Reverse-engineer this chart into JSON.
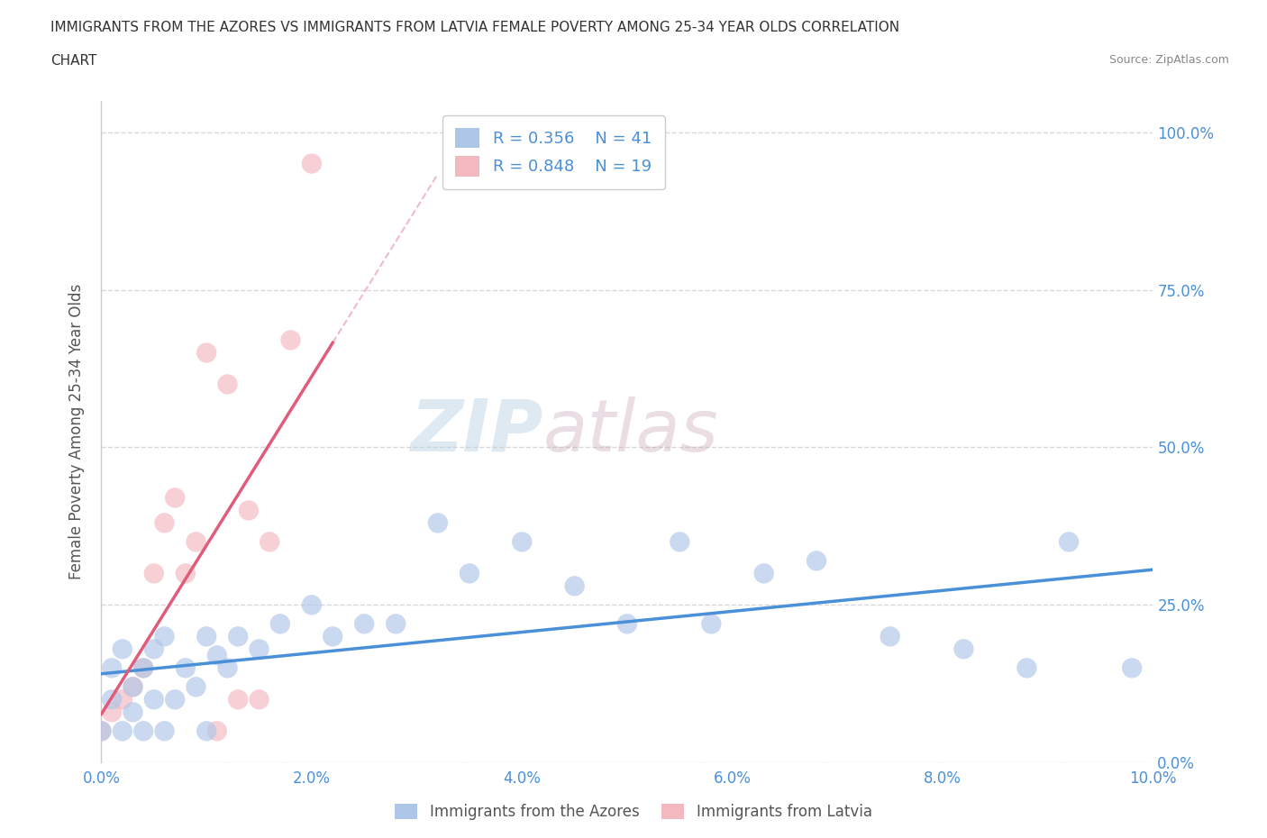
{
  "title_line1": "IMMIGRANTS FROM THE AZORES VS IMMIGRANTS FROM LATVIA FEMALE POVERTY AMONG 25-34 YEAR OLDS CORRELATION",
  "title_line2": "CHART",
  "source_text": "Source: ZipAtlas.com",
  "ylabel": "Female Poverty Among 25-34 Year Olds",
  "xlim": [
    0.0,
    0.1
  ],
  "ylim": [
    0.0,
    1.05
  ],
  "xtick_labels": [
    "0.0%",
    "2.0%",
    "4.0%",
    "6.0%",
    "8.0%",
    "10.0%"
  ],
  "xtick_vals": [
    0.0,
    0.02,
    0.04,
    0.06,
    0.08,
    0.1
  ],
  "ytick_labels": [
    "0.0%",
    "25.0%",
    "50.0%",
    "75.0%",
    "100.0%"
  ],
  "ytick_vals": [
    0.0,
    0.25,
    0.5,
    0.75,
    1.0
  ],
  "watermark_zip": "ZIP",
  "watermark_atlas": "atlas",
  "azores_color": "#aec6e8",
  "latvia_color": "#f4b8c1",
  "azores_line_color": "#4a90d9",
  "latvia_line_color": "#e05c7a",
  "latvia_dash_color": "#e8a0b0",
  "legend_azores_label": "Immigrants from the Azores",
  "legend_latvia_label": "Immigrants from Latvia",
  "R_azores": 0.356,
  "N_azores": 41,
  "R_latvia": 0.848,
  "N_latvia": 19,
  "azores_x": [
    0.0,
    0.001,
    0.001,
    0.002,
    0.002,
    0.003,
    0.003,
    0.004,
    0.004,
    0.005,
    0.005,
    0.006,
    0.006,
    0.007,
    0.008,
    0.009,
    0.01,
    0.011,
    0.012,
    0.013,
    0.015,
    0.017,
    0.02,
    0.022,
    0.025,
    0.028,
    0.032,
    0.035,
    0.04,
    0.045,
    0.05,
    0.055,
    0.058,
    0.063,
    0.068,
    0.075,
    0.082,
    0.088,
    0.092,
    0.098,
    0.01
  ],
  "azores_y": [
    0.05,
    0.1,
    0.15,
    0.05,
    0.18,
    0.08,
    0.12,
    0.05,
    0.15,
    0.1,
    0.18,
    0.05,
    0.2,
    0.1,
    0.15,
    0.12,
    0.2,
    0.17,
    0.15,
    0.2,
    0.18,
    0.22,
    0.25,
    0.2,
    0.22,
    0.22,
    0.38,
    0.3,
    0.35,
    0.28,
    0.22,
    0.35,
    0.22,
    0.3,
    0.32,
    0.2,
    0.18,
    0.15,
    0.35,
    0.15,
    0.05
  ],
  "latvia_x": [
    0.0,
    0.001,
    0.002,
    0.003,
    0.004,
    0.005,
    0.006,
    0.007,
    0.008,
    0.009,
    0.01,
    0.011,
    0.012,
    0.013,
    0.014,
    0.015,
    0.016,
    0.018,
    0.02
  ],
  "latvia_y": [
    0.05,
    0.08,
    0.1,
    0.12,
    0.15,
    0.3,
    0.38,
    0.42,
    0.3,
    0.35,
    0.65,
    0.05,
    0.6,
    0.1,
    0.4,
    0.1,
    0.35,
    0.67,
    0.95
  ],
  "lv_line_x_start": 0.0,
  "lv_line_x_solid_end": 0.022,
  "lv_line_x_dash_end": 0.032,
  "az_line_x_start": 0.0,
  "az_line_x_end": 0.1,
  "background_color": "#ffffff",
  "grid_color": "#d8d8d8",
  "title_color": "#333333",
  "axis_label_color": "#555555",
  "tick_label_color": "#4a90d9"
}
